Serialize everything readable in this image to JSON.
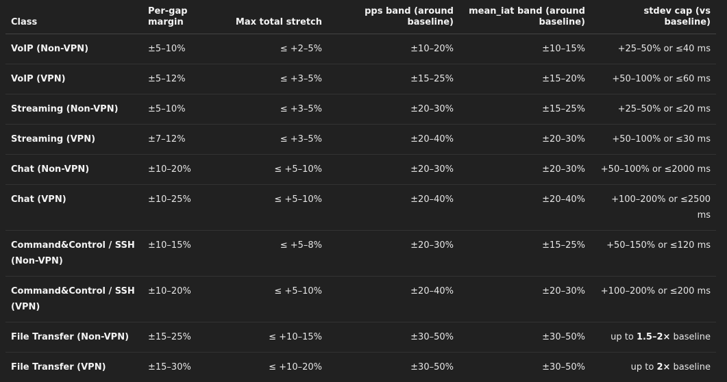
{
  "headers": {
    "class": "Class",
    "margin": "Per-gap margin",
    "stretch": "Max total stretch",
    "pps": "pps band (around baseline)",
    "mean_iat": "mean_iat band (around baseline)",
    "stdev": "stdev cap (vs baseline)"
  },
  "rows": [
    {
      "class": "VoIP (Non-VPN)",
      "margin": "±5–10%",
      "stretch": "≤ +2–5%",
      "pps": "±10–20%",
      "mean_iat": "±10–15%",
      "stdev": "+25–50% or ≤40 ms"
    },
    {
      "class": "VoIP (VPN)",
      "margin": "±5–12%",
      "stretch": "≤ +3–5%",
      "pps": "±15–25%",
      "mean_iat": "±15–20%",
      "stdev": "+50–100% or ≤60 ms"
    },
    {
      "class": "Streaming (Non-VPN)",
      "margin": "±5–10%",
      "stretch": "≤ +3–5%",
      "pps": "±20–30%",
      "mean_iat": "±15–25%",
      "stdev": "+25–50% or ≤20 ms"
    },
    {
      "class": "Streaming (VPN)",
      "margin": "±7–12%",
      "stretch": "≤ +3–5%",
      "pps": "±20–40%",
      "mean_iat": "±20–30%",
      "stdev": "+50–100% or ≤30 ms"
    },
    {
      "class": "Chat (Non-VPN)",
      "margin": "±10–20%",
      "stretch": "≤ +5–10%",
      "pps": "±20–30%",
      "mean_iat": "±20–30%",
      "stdev": "+50–100% or ≤2000 ms"
    },
    {
      "class": "Chat (VPN)",
      "margin": "±10–25%",
      "stretch": "≤ +5–10%",
      "pps": "±20–40%",
      "mean_iat": "±20–40%",
      "stdev": "+100–200% or ≤2500 ms"
    },
    {
      "class": "Command&Control / SSH (Non-VPN)",
      "margin": "±10–15%",
      "stretch": "≤ +5–8%",
      "pps": "±20–30%",
      "mean_iat": "±15–25%",
      "stdev": "+50–150% or ≤120 ms"
    },
    {
      "class": "Command&Control / SSH (VPN)",
      "margin": "±10–20%",
      "stretch": "≤ +5–10%",
      "pps": "±20–40%",
      "mean_iat": "±20–30%",
      "stdev": "+100–200% or ≤200 ms"
    },
    {
      "class": "File Transfer (Non-VPN)",
      "margin": "±15–25%",
      "stretch": "≤ +10–15%",
      "pps": "±30–50%",
      "mean_iat": "±30–50%",
      "stdev_pre": "up to",
      "stdev_bold": "1.5–2×",
      "stdev_post": "baseline"
    },
    {
      "class": "File Transfer (VPN)",
      "margin": "±15–30%",
      "stretch": "≤ +10–20%",
      "pps": "±30–50%",
      "mean_iat": "±30–50%",
      "stdev_pre": "up to",
      "stdev_bold": "2×",
      "stdev_post": "baseline"
    }
  ]
}
